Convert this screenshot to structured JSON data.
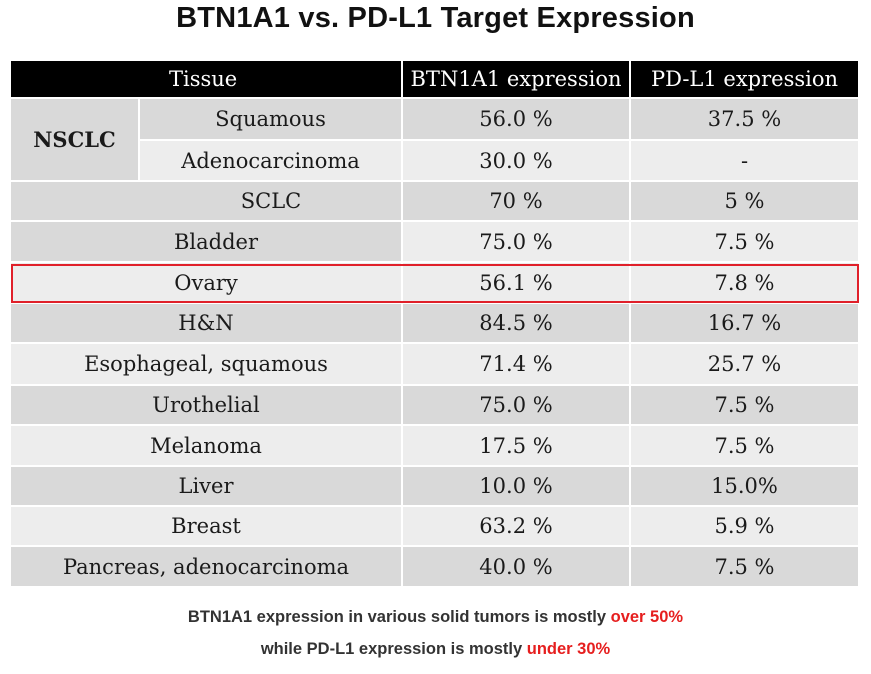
{
  "title": "BTN1A1 vs. PD-L1 Target Expression",
  "table": {
    "headers": {
      "tissue": "Tissue",
      "btn1a1": "BTN1A1 expression",
      "pdl1": "PD-L1 expression"
    },
    "group_label": "NSCLC",
    "rows": [
      {
        "tissue": "Squamous",
        "btn1a1": "56.0 %",
        "pdl1": "37.5 %"
      },
      {
        "tissue": "Adenocarcinoma",
        "btn1a1": "30.0 %",
        "pdl1": "-"
      },
      {
        "tissue": "SCLC",
        "btn1a1": "70 %",
        "pdl1": "5 %"
      },
      {
        "tissue": "Bladder",
        "btn1a1": "75.0 %",
        "pdl1": "7.5 %"
      },
      {
        "tissue": "Ovary",
        "btn1a1": "56.1 %",
        "pdl1": "7.8 %"
      },
      {
        "tissue": "H&N",
        "btn1a1": "84.5 %",
        "pdl1": "16.7 %"
      },
      {
        "tissue": "Esophageal, squamous",
        "btn1a1": "71.4 %",
        "pdl1": "25.7 %"
      },
      {
        "tissue": "Urothelial",
        "btn1a1": "75.0 %",
        "pdl1": "7.5 %"
      },
      {
        "tissue": "Melanoma",
        "btn1a1": "17.5 %",
        "pdl1": "7.5 %"
      },
      {
        "tissue": "Liver",
        "btn1a1": "10.0 %",
        "pdl1": "15.0%"
      },
      {
        "tissue": "Breast",
        "btn1a1": "63.2 %",
        "pdl1": "5.9 %"
      },
      {
        "tissue": "Pancreas, adenocarcinoma",
        "btn1a1": "40.0 %",
        "pdl1": "7.5 %"
      }
    ]
  },
  "footnote": {
    "line1_text": "BTN1A1 expression in various solid tumors is mostly ",
    "line1_highlight": "over 50%",
    "line2_text": "while PD-L1 expression is mostly ",
    "line2_highlight": "under 30%"
  },
  "colors": {
    "header_bg": "#000000",
    "row_dark": "#d9d9d9",
    "row_light": "#ededed",
    "highlight_border": "#e0202a",
    "emphasis_text": "#e61e1e"
  }
}
